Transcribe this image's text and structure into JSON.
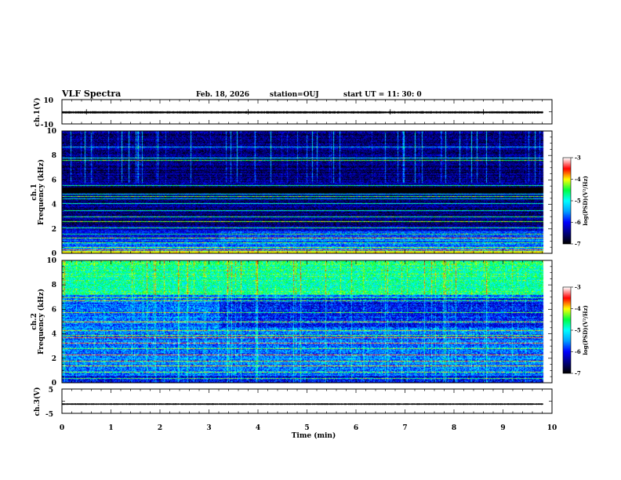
{
  "header": {
    "title": "VLF Spectra",
    "date": "Feb. 18, 2026",
    "station": "station=OUJ",
    "start_ut": "start  UT =  11: 30: 0"
  },
  "chart_data": {
    "type": "heatmap",
    "x": {
      "label": "Time  (min)",
      "range": [
        0,
        10
      ],
      "ticks": [
        "0",
        "1",
        "2",
        "3",
        "4",
        "5",
        "6",
        "7",
        "8",
        "9",
        "10"
      ],
      "data_end_min": 9.82
    },
    "panels": [
      {
        "id": "ch1-waveform",
        "type": "line",
        "ylabel": "ch.1(V)",
        "ylim": [
          -10,
          10
        ],
        "yticks": [
          "10",
          "-10"
        ],
        "baseline_v": -0.5,
        "envelope_v": 1.0
      },
      {
        "id": "ch1-spectrogram",
        "type": "heatmap",
        "ylabel_line1": "ch.1",
        "ylabel_line2": "Frequency (kHz)",
        "ylim_khz": [
          0,
          10
        ],
        "yticks": [
          "10",
          "8",
          "6",
          "4",
          "2",
          "0"
        ],
        "colorbar": {
          "label": "log(PSD)(V²/Hz)",
          "range": [
            -7,
            -3
          ],
          "ticks": [
            "-3",
            "-4",
            "-5",
            "-6",
            "-7"
          ]
        },
        "base_level": -6.5,
        "low_freq_level": -5.6,
        "lines_khz": [
          0.3,
          0.5,
          0.9,
          1.3,
          1.6,
          2.1,
          2.6,
          3.0,
          3.5,
          4.1,
          4.5,
          4.7,
          4.9,
          5.6,
          7.6,
          7.8,
          8.7
        ],
        "dark_band_khz": [
          5.0,
          5.4
        ],
        "transition_min": 3.2
      },
      {
        "id": "ch2-spectrogram",
        "type": "heatmap",
        "ylabel_line1": "ch.2",
        "ylabel_line2": "Frequency (kHz)",
        "ylim_khz": [
          0,
          10
        ],
        "yticks": [
          "10",
          "8",
          "6",
          "4",
          "2",
          "0"
        ],
        "colorbar": {
          "label": "log(PSD)(V²/Hz)",
          "range": [
            -7,
            -3
          ],
          "ticks": [
            "-3",
            "-4",
            "-5",
            "-6",
            "-7"
          ]
        },
        "base_level": -5.6,
        "high_freq_level": -4.9,
        "lines_khz": [
          0.4,
          0.9,
          1.4,
          1.8,
          2.3,
          2.8,
          3.3,
          3.7,
          3.9,
          4.3,
          5.0,
          5.8,
          6.7,
          7.0
        ],
        "transition_min": 3.2
      },
      {
        "id": "ch3-waveform",
        "type": "line",
        "ylabel": "ch.3(V)",
        "ylim": [
          -5,
          5
        ],
        "yticks": [
          "5",
          "-5"
        ],
        "baseline_v": -1.2,
        "envelope_v": 0.35
      }
    ]
  },
  "colors": {
    "waveform": "#000000",
    "axes": "#000000",
    "colormap": [
      "#000000",
      "#000080",
      "#0000ff",
      "#00a0ff",
      "#00ffff",
      "#00ff40",
      "#ffff00",
      "#ff0000",
      "#ffffff"
    ]
  }
}
